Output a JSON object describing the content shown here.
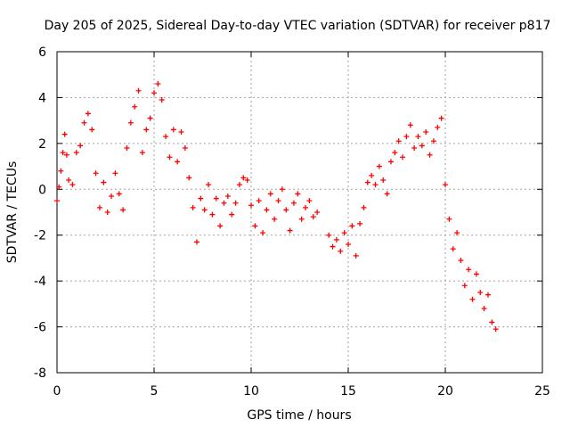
{
  "chart_data": {
    "type": "scatter",
    "title": "Day 205 of 2025, Sidereal Day-to-day VTEC variation (SDTVAR) for receiver p817",
    "xlabel": "GPS time / hours",
    "ylabel": "SDTVAR / TECUs",
    "xlim": [
      0,
      25
    ],
    "ylim": [
      -8,
      6
    ],
    "xticks": [
      0,
      5,
      10,
      15,
      20,
      25
    ],
    "yticks": [
      -8,
      -6,
      -4,
      -2,
      0,
      2,
      4,
      6
    ],
    "xtick_labels": [
      "0",
      "5",
      "10",
      "15",
      "20",
      "25"
    ],
    "ytick_labels": [
      "-8",
      "-6",
      "-4",
      "-2",
      "0",
      "2",
      "4",
      "6"
    ],
    "grid": true,
    "marker": "+",
    "marker_color": "#ff0000",
    "series": [
      {
        "name": "SDTVAR",
        "x": [
          0.0,
          0.1,
          0.2,
          0.3,
          0.4,
          0.5,
          0.6,
          0.8,
          1.0,
          1.2,
          1.4,
          1.6,
          1.8,
          2.0,
          2.2,
          2.4,
          2.6,
          2.8,
          3.0,
          3.2,
          3.4,
          3.6,
          3.8,
          4.0,
          4.2,
          4.4,
          4.6,
          4.8,
          5.0,
          5.2,
          5.4,
          5.6,
          5.8,
          6.0,
          6.2,
          6.4,
          6.6,
          6.8,
          7.0,
          7.2,
          7.4,
          7.6,
          7.8,
          8.0,
          8.2,
          8.4,
          8.6,
          8.8,
          9.0,
          9.2,
          9.4,
          9.6,
          9.8,
          10.0,
          10.2,
          10.4,
          10.6,
          10.8,
          11.0,
          11.2,
          11.4,
          11.6,
          11.8,
          12.0,
          12.2,
          12.4,
          12.6,
          12.8,
          13.0,
          13.2,
          13.4,
          14.0,
          14.2,
          14.4,
          14.6,
          14.8,
          15.0,
          15.2,
          15.4,
          15.6,
          15.8,
          16.0,
          16.2,
          16.4,
          16.6,
          16.8,
          17.0,
          17.2,
          17.4,
          17.6,
          17.8,
          18.0,
          18.2,
          18.4,
          18.6,
          18.8,
          19.0,
          19.2,
          19.4,
          19.6,
          19.8,
          20.0,
          20.2,
          20.4,
          20.6,
          20.8,
          21.0,
          21.2,
          21.4,
          21.6,
          21.8,
          22.0,
          22.2,
          22.4,
          22.6
        ],
        "values": [
          -0.5,
          0.1,
          0.8,
          1.6,
          2.4,
          1.5,
          0.4,
          0.2,
          1.6,
          1.9,
          2.9,
          3.3,
          2.6,
          0.7,
          -0.8,
          0.3,
          -1.0,
          -0.3,
          0.7,
          -0.2,
          -0.9,
          1.8,
          2.9,
          3.6,
          4.3,
          1.6,
          2.6,
          3.1,
          4.2,
          4.6,
          3.9,
          2.3,
          1.4,
          2.6,
          1.2,
          2.5,
          1.8,
          0.5,
          -0.8,
          -2.3,
          -0.4,
          -0.9,
          0.2,
          -1.1,
          -0.4,
          -1.6,
          -0.6,
          -0.3,
          -1.1,
          -0.6,
          0.2,
          0.5,
          0.4,
          -0.7,
          -1.6,
          -0.5,
          -1.9,
          -0.9,
          -0.2,
          -1.3,
          -0.5,
          0.0,
          -0.9,
          -1.8,
          -0.6,
          -0.2,
          -1.3,
          -0.8,
          -0.5,
          -1.2,
          -1.0,
          -2.0,
          -2.5,
          -2.2,
          -2.7,
          -1.9,
          -2.4,
          -1.6,
          -2.9,
          -1.5,
          -0.8,
          0.3,
          0.6,
          0.2,
          1.0,
          0.4,
          -0.2,
          1.2,
          1.6,
          2.1,
          1.4,
          2.3,
          2.8,
          1.8,
          2.3,
          1.9,
          2.5,
          1.5,
          2.1,
          2.7,
          3.1,
          0.2,
          -1.3,
          -2.6,
          -1.9,
          -3.1,
          -4.2,
          -3.5,
          -4.8,
          -3.7,
          -4.5,
          -5.2,
          -4.6,
          -5.8,
          -6.1
        ]
      }
    ]
  }
}
